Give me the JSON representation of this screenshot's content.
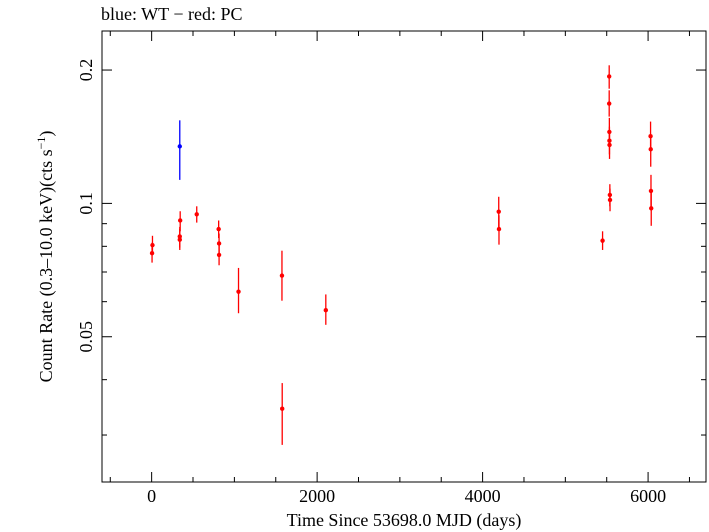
{
  "chart_data": {
    "type": "scatter",
    "title": "blue: WT − red: PC",
    "xlabel": "Time Since 53698.0 MJD (days)",
    "ylabel_main": "Count Rate (0.3–10.0 keV)(cts s",
    "ylabel_sup": "−1",
    "ylabel_close": ")",
    "yscale": "log",
    "xlim": [
      -600,
      6700
    ],
    "ylim": [
      0.0235,
      0.245
    ],
    "grid": false,
    "x_ticks": [
      {
        "value": 0,
        "label": "0"
      },
      {
        "value": 2000,
        "label": "2000"
      },
      {
        "value": 4000,
        "label": "4000"
      },
      {
        "value": 6000,
        "label": "6000"
      }
    ],
    "y_ticks": [
      {
        "value": 0.05,
        "label": "0.05"
      },
      {
        "value": 0.1,
        "label": "0.1"
      },
      {
        "value": 0.2,
        "label": "0.2"
      }
    ],
    "series": [
      {
        "name": "WT",
        "color": "#0000ff",
        "points": [
          {
            "x": 340,
            "y": 0.1345,
            "ylo": 0.113,
            "yhi": 0.154
          }
        ]
      },
      {
        "name": "PC",
        "color": "#ff0000",
        "points": [
          {
            "x": 5,
            "y": 0.0772,
            "ylo": 0.0735,
            "yhi": 0.0815
          },
          {
            "x": 10,
            "y": 0.0805,
            "ylo": 0.0765,
            "yhi": 0.0845
          },
          {
            "x": 340,
            "y": 0.0828,
            "ylo": 0.0785,
            "yhi": 0.0875
          },
          {
            "x": 340,
            "y": 0.0842,
            "ylo": 0.0795,
            "yhi": 0.0885
          },
          {
            "x": 345,
            "y": 0.0915,
            "ylo": 0.0865,
            "yhi": 0.096
          },
          {
            "x": 545,
            "y": 0.0945,
            "ylo": 0.0905,
            "yhi": 0.0985
          },
          {
            "x": 810,
            "y": 0.0875,
            "ylo": 0.0835,
            "yhi": 0.0915
          },
          {
            "x": 815,
            "y": 0.0812,
            "ylo": 0.077,
            "yhi": 0.0855
          },
          {
            "x": 815,
            "y": 0.0765,
            "ylo": 0.0725,
            "yhi": 0.081
          },
          {
            "x": 1050,
            "y": 0.0632,
            "ylo": 0.0565,
            "yhi": 0.0715
          },
          {
            "x": 1575,
            "y": 0.0687,
            "ylo": 0.0603,
            "yhi": 0.0782
          },
          {
            "x": 1578,
            "y": 0.0344,
            "ylo": 0.0285,
            "yhi": 0.0393
          },
          {
            "x": 2105,
            "y": 0.0574,
            "ylo": 0.0532,
            "yhi": 0.0623
          },
          {
            "x": 4195,
            "y": 0.0958,
            "ylo": 0.0883,
            "yhi": 0.1035
          },
          {
            "x": 4198,
            "y": 0.0875,
            "ylo": 0.0807,
            "yhi": 0.094
          },
          {
            "x": 5450,
            "y": 0.0824,
            "ylo": 0.0785,
            "yhi": 0.0865
          },
          {
            "x": 5530,
            "y": 0.1935,
            "ylo": 0.1815,
            "yhi": 0.205
          },
          {
            "x": 5530,
            "y": 0.168,
            "ylo": 0.157,
            "yhi": 0.18
          },
          {
            "x": 5532,
            "y": 0.145,
            "ylo": 0.135,
            "yhi": 0.156
          },
          {
            "x": 5533,
            "y": 0.1385,
            "ylo": 0.129,
            "yhi": 0.149
          },
          {
            "x": 5534,
            "y": 0.1355,
            "ylo": 0.126,
            "yhi": 0.146
          },
          {
            "x": 5538,
            "y": 0.1045,
            "ylo": 0.0985,
            "yhi": 0.1105
          },
          {
            "x": 5540,
            "y": 0.1018,
            "ylo": 0.096,
            "yhi": 0.108
          },
          {
            "x": 6030,
            "y": 0.1418,
            "ylo": 0.131,
            "yhi": 0.153
          },
          {
            "x": 6032,
            "y": 0.1325,
            "ylo": 0.121,
            "yhi": 0.143
          },
          {
            "x": 6035,
            "y": 0.1067,
            "ylo": 0.098,
            "yhi": 0.116
          },
          {
            "x": 6038,
            "y": 0.0975,
            "ylo": 0.089,
            "yhi": 0.106
          }
        ]
      }
    ]
  }
}
